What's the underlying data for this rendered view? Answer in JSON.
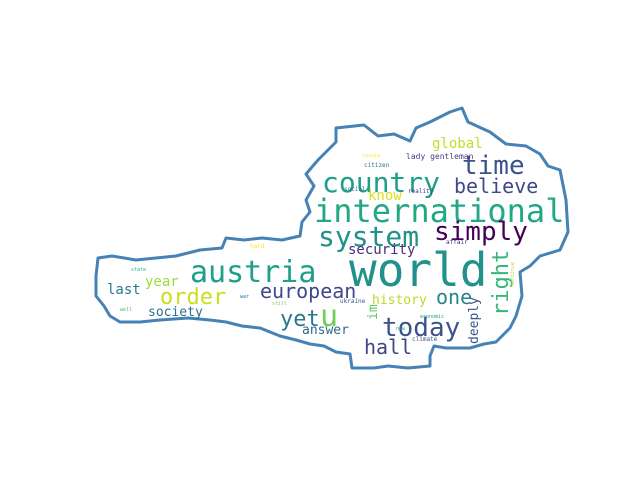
{
  "words": [
    {
      "text": "world",
      "color": "#21918c"
    },
    {
      "text": "international",
      "color": "#22a884"
    },
    {
      "text": "austria",
      "color": "#1f9e89"
    },
    {
      "text": "country",
      "color": "#1f9e89"
    },
    {
      "text": "system",
      "color": "#21918c"
    },
    {
      "text": "time",
      "color": "#3b528b"
    },
    {
      "text": "believe",
      "color": "#3e4989"
    },
    {
      "text": "simply",
      "color": "#440154"
    },
    {
      "text": "today",
      "color": "#3b528b"
    },
    {
      "text": "order",
      "color": "#c8e020"
    },
    {
      "text": "european",
      "color": "#3e4989"
    },
    {
      "text": "u",
      "color": "#6ece58"
    },
    {
      "text": "yet",
      "color": "#2a788e"
    },
    {
      "text": "right",
      "color": "#35b779"
    },
    {
      "text": "one",
      "color": "#26828e"
    },
    {
      "text": "hall",
      "color": "#414487"
    },
    {
      "text": "global",
      "color": "#bddf26"
    },
    {
      "text": "security",
      "color": "#472d7b"
    },
    {
      "text": "know",
      "color": "#d8e219"
    },
    {
      "text": "history",
      "color": "#b5de2b"
    },
    {
      "text": "year",
      "color": "#a0da39"
    },
    {
      "text": "last",
      "color": "#2a788e"
    },
    {
      "text": "society",
      "color": "#2d708e"
    },
    {
      "text": "answer",
      "color": "#31688e"
    },
    {
      "text": "deeply",
      "color": "#3b528b"
    },
    {
      "text": "im",
      "color": "#5ec962"
    },
    {
      "text": "lady gentleman",
      "color": "#433e85"
    },
    {
      "text": "citizen",
      "color": "#2c728e"
    },
    {
      "text": "reality",
      "color": "#443983"
    },
    {
      "text": "russia",
      "color": "#fde725"
    },
    {
      "text": "social",
      "color": "#2e6e8e"
    },
    {
      "text": "affair",
      "color": "#482878"
    },
    {
      "text": "state",
      "color": "#2db27d"
    },
    {
      "text": "well",
      "color": "#3dbc74"
    },
    {
      "text": "economic",
      "color": "#1fa188"
    },
    {
      "text": "ukraine",
      "color": "#39558c"
    },
    {
      "text": "climate",
      "color": "#3a548c"
    },
    {
      "text": "new",
      "color": "#1e9c89"
    },
    {
      "text": "still",
      "color": "#7ad151"
    },
    {
      "text": "war",
      "color": "#2e6d8e"
    },
    {
      "text": "hard",
      "color": "#fde725"
    },
    {
      "text": "continue",
      "color": "#b8de29"
    }
  ],
  "outline_color": "#4682b4"
}
